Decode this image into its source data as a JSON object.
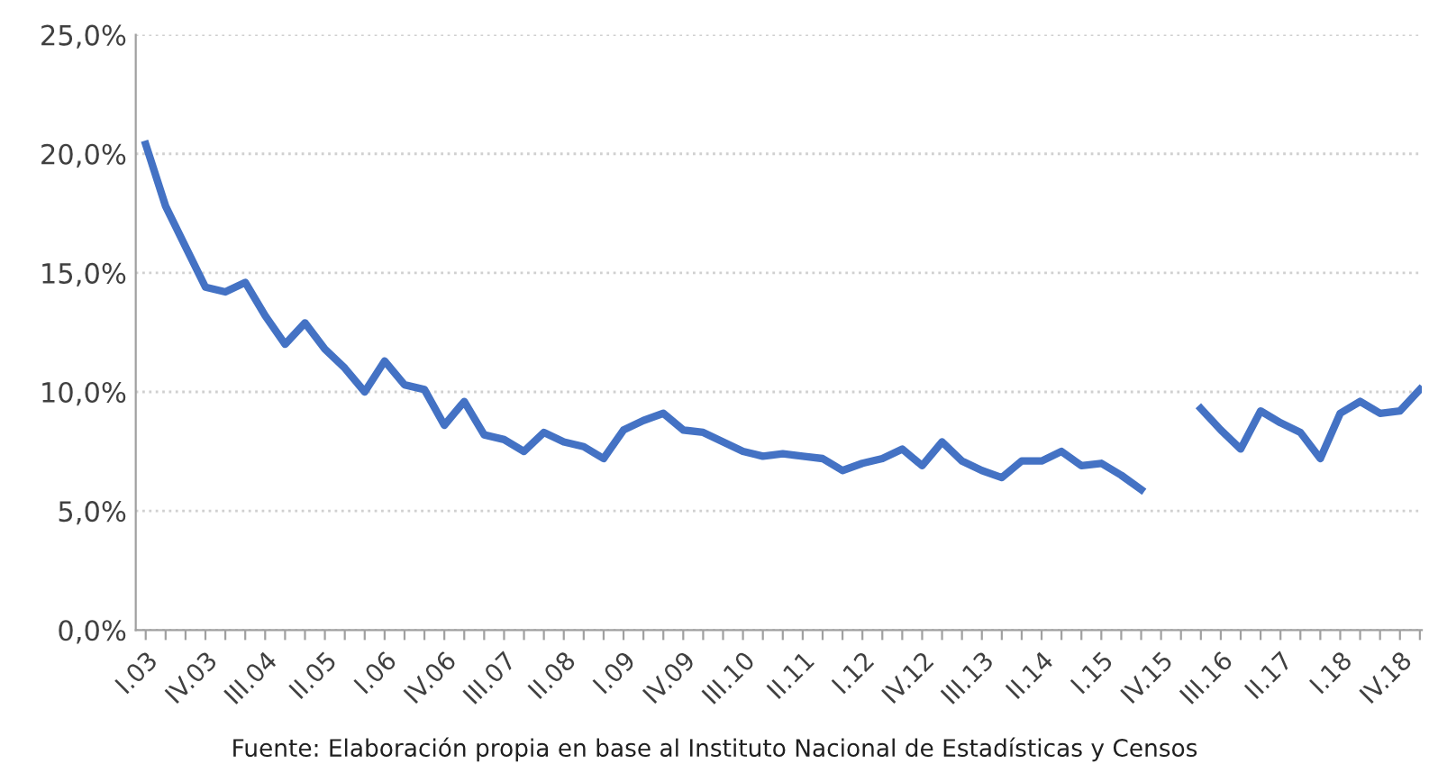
{
  "chart_data": {
    "type": "line",
    "categories": [
      "I.03",
      null,
      null,
      "IV.03",
      null,
      null,
      "III.04",
      null,
      null,
      "II.05",
      null,
      null,
      "I.06",
      null,
      null,
      "IV.06",
      null,
      null,
      "III.07",
      null,
      null,
      "II.08",
      null,
      null,
      "I.09",
      null,
      null,
      "IV.09",
      null,
      null,
      "III.10",
      null,
      null,
      "II.11",
      null,
      null,
      "I.12",
      null,
      null,
      "IV.12",
      null,
      null,
      "III.13",
      null,
      null,
      "II.14",
      null,
      null,
      "I.15",
      null,
      null,
      "IV.15",
      null,
      null,
      "III.16",
      null,
      null,
      "II.17",
      null,
      null,
      "I.18",
      null,
      null,
      "IV.18",
      null
    ],
    "series": [
      {
        "color": "#4472c4",
        "values": [
          20.4,
          17.8,
          16.1,
          14.4,
          14.2,
          14.6,
          13.2,
          12.0,
          12.9,
          11.8,
          11.0,
          10.0,
          11.3,
          10.3,
          10.1,
          8.6,
          9.6,
          8.2,
          8.0,
          7.5,
          8.3,
          7.9,
          7.7,
          7.2,
          8.4,
          8.8,
          9.1,
          8.4,
          8.3,
          7.9,
          7.5,
          7.3,
          7.4,
          7.3,
          7.2,
          6.7,
          7.0,
          7.2,
          7.6,
          6.9,
          7.9,
          7.1,
          6.7,
          6.4,
          7.1,
          7.1,
          7.5,
          6.9,
          7.0,
          6.5,
          5.9,
          null,
          null,
          9.3,
          8.4,
          7.6,
          9.2,
          8.7,
          8.3,
          7.2,
          9.1,
          9.6,
          9.1,
          9.2,
          10.1
        ]
      }
    ],
    "ylim": [
      0,
      25
    ],
    "yticks": [
      {
        "value": 0,
        "label": "0,0%"
      },
      {
        "value": 5,
        "label": "5,0%"
      },
      {
        "value": 10,
        "label": "10,0%"
      },
      {
        "value": 15,
        "label": "15,0%"
      },
      {
        "value": 20,
        "label": "20,0%"
      },
      {
        "value": 25,
        "label": "25,0%"
      }
    ],
    "grid": "y",
    "marker": "none",
    "line_style": "solid",
    "annotations": [
      "Fuente: Elaboración propia en base al Instituto Nacional de Estadísticas y Censos"
    ]
  }
}
